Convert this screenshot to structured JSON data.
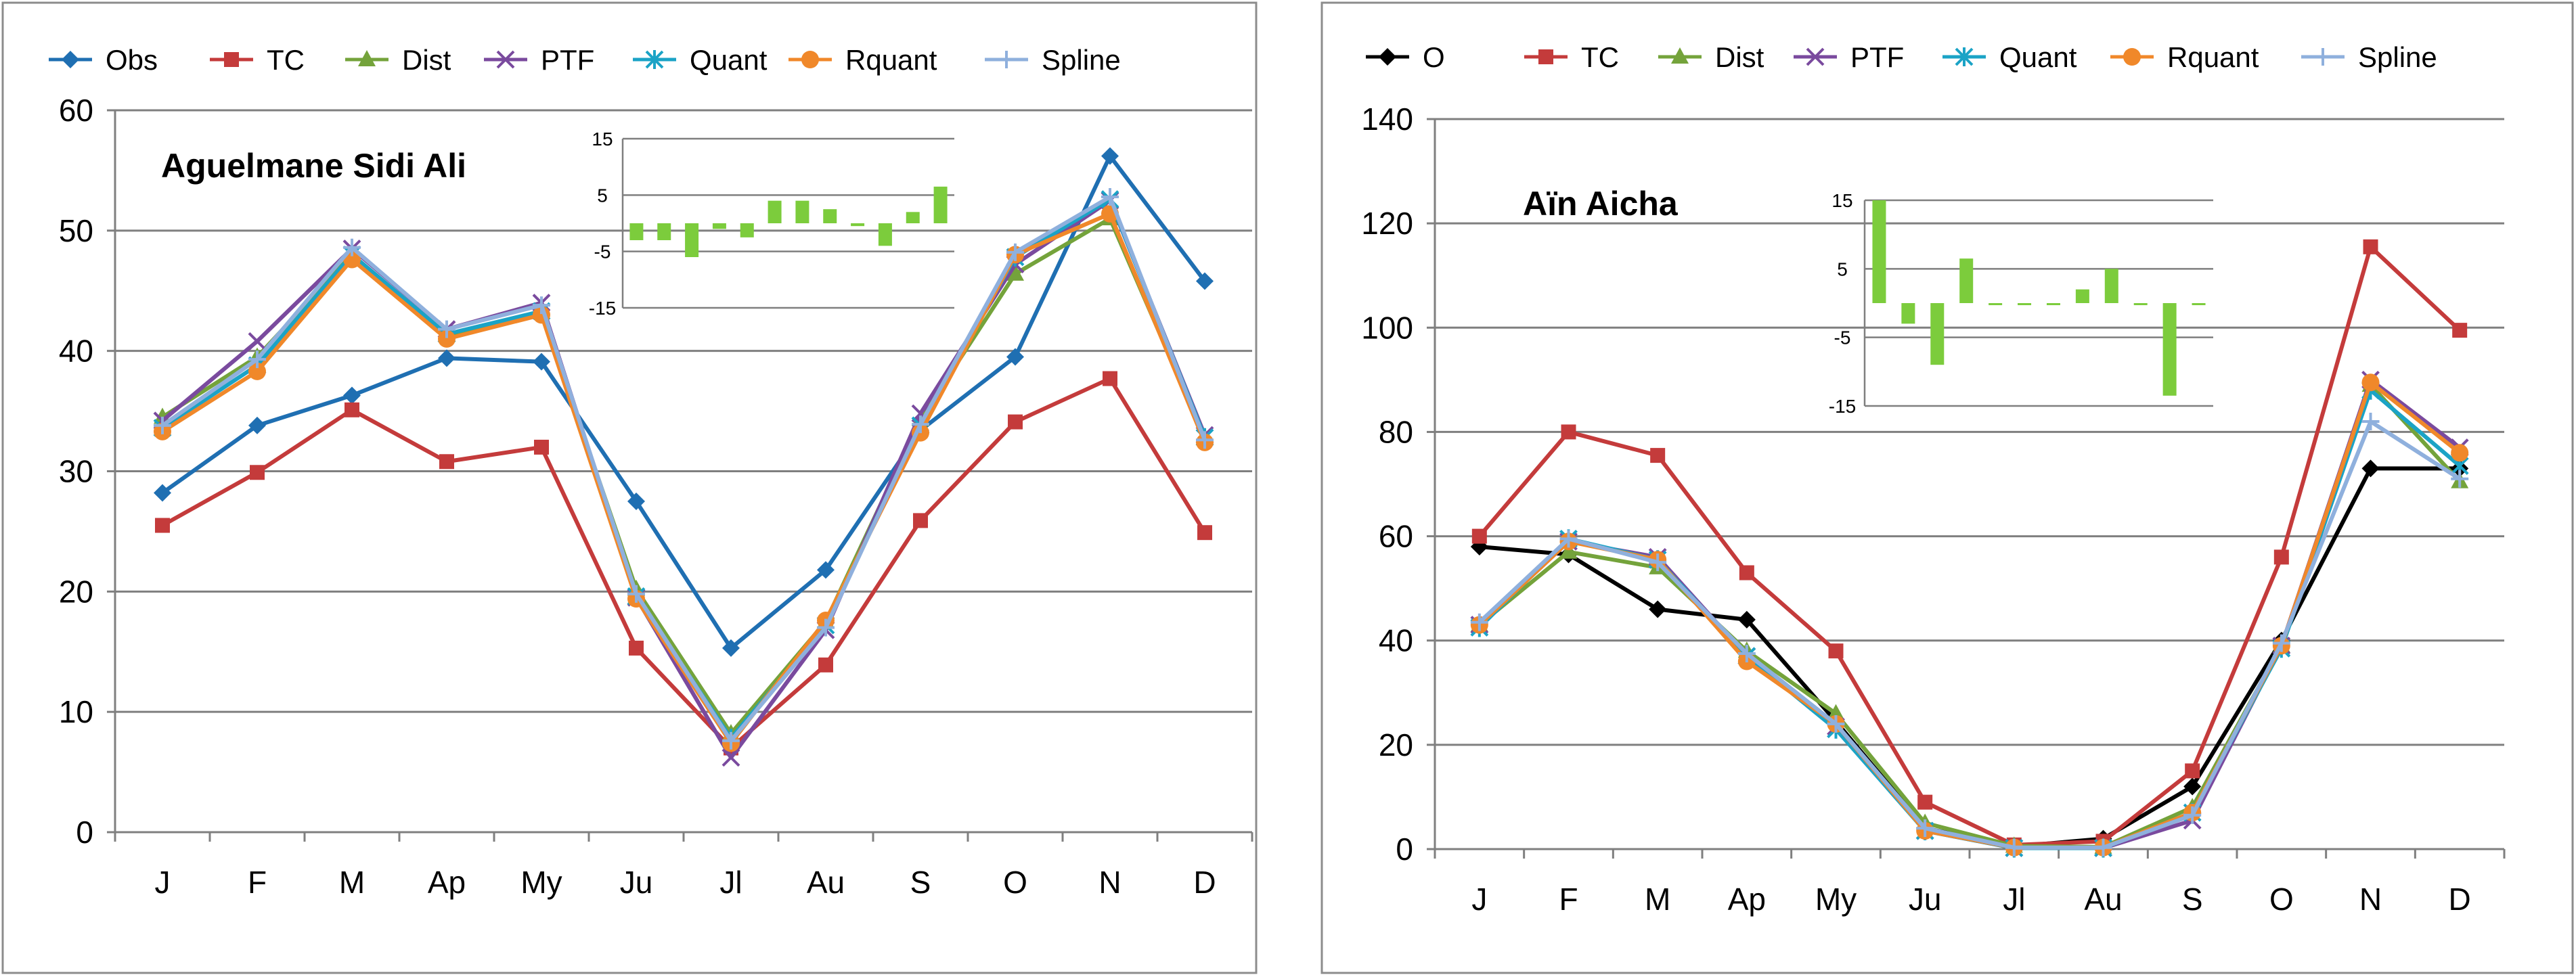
{
  "colors": {
    "obs": "#1f6fb2",
    "o": "#000000",
    "tc": "#c43b3b",
    "dist": "#74a33b",
    "ptf": "#7a4a9e",
    "quant": "#1ba3c6",
    "rquant": "#f0882a",
    "spline": "#8fb0dd",
    "bar": "#7ccc3c",
    "grid": "#7f7f7f"
  },
  "chart_data": [
    {
      "type": "line",
      "title": "Aguelmane Sidi Ali",
      "categories": [
        "J",
        "F",
        "M",
        "Ap",
        "My",
        "Ju",
        "Jl",
        "Au",
        "S",
        "O",
        "N",
        "D"
      ],
      "ylim": [
        0,
        60
      ],
      "yticks": [
        0,
        10,
        20,
        30,
        40,
        50,
        60
      ],
      "grid": true,
      "legend_position": "top",
      "series": [
        {
          "name": "Obs",
          "key": "obs",
          "marker": "diamond",
          "values": [
            28.2,
            33.8,
            36.3,
            39.4,
            39.1,
            27.5,
            15.3,
            21.8,
            33.4,
            39.5,
            56.2,
            45.8
          ]
        },
        {
          "name": "TC",
          "key": "tc",
          "marker": "square",
          "values": [
            25.5,
            29.9,
            35.1,
            30.8,
            32.0,
            15.3,
            7.0,
            13.9,
            25.9,
            34.1,
            37.7,
            24.9
          ]
        },
        {
          "name": "Dist",
          "key": "dist",
          "marker": "triangle",
          "values": [
            34.5,
            39.5,
            48.0,
            41.3,
            43.2,
            20.2,
            8.2,
            17.5,
            34.3,
            46.4,
            51.0,
            32.8
          ]
        },
        {
          "name": "PTF",
          "key": "ptf",
          "marker": "x",
          "values": [
            34.2,
            40.8,
            48.5,
            41.8,
            44.0,
            19.5,
            6.2,
            16.8,
            34.8,
            47.2,
            52.5,
            33.0
          ]
        },
        {
          "name": "Quant",
          "key": "quant",
          "marker": "star",
          "values": [
            33.6,
            38.8,
            48.0,
            41.4,
            43.3,
            19.6,
            7.8,
            17.2,
            33.8,
            47.8,
            52.6,
            32.8
          ]
        },
        {
          "name": "Rquant",
          "key": "rquant",
          "marker": "circle",
          "values": [
            33.3,
            38.3,
            47.6,
            41.0,
            43.0,
            19.4,
            7.4,
            17.6,
            33.2,
            48.0,
            51.4,
            32.4
          ]
        },
        {
          "name": "Spline",
          "key": "spline",
          "marker": "plus",
          "values": [
            33.8,
            39.3,
            48.6,
            41.8,
            43.8,
            19.8,
            7.6,
            17.0,
            33.9,
            48.2,
            52.8,
            32.6
          ]
        }
      ],
      "inset": {
        "type": "bar",
        "ylim": [
          -15,
          15
        ],
        "yticks": [
          "15",
          "5",
          "-5",
          "-15"
        ],
        "values": [
          -3.0,
          -3.0,
          -6.0,
          -1.0,
          -2.5,
          4.0,
          4.0,
          2.5,
          -0.5,
          -4.0,
          2.0,
          6.5
        ]
      }
    },
    {
      "type": "line",
      "title": "Aïn Aicha",
      "categories": [
        "J",
        "F",
        "M",
        "Ap",
        "My",
        "Ju",
        "Jl",
        "Au",
        "S",
        "O",
        "N",
        "D"
      ],
      "ylim": [
        0,
        140
      ],
      "yticks": [
        0,
        20,
        40,
        60,
        80,
        100,
        120,
        140
      ],
      "grid": true,
      "legend_position": "top",
      "series": [
        {
          "name": "O",
          "key": "o",
          "marker": "diamond",
          "values": [
            58.0,
            56.5,
            46.0,
            44.0,
            24.5,
            4.0,
            0.5,
            2.0,
            12.0,
            40.0,
            73.0,
            73.0
          ]
        },
        {
          "name": "TC",
          "key": "tc",
          "marker": "square",
          "values": [
            60.0,
            80.0,
            75.5,
            53.0,
            38.0,
            9.0,
            0.8,
            1.5,
            15.0,
            56.0,
            115.5,
            99.5
          ]
        },
        {
          "name": "Dist",
          "key": "dist",
          "marker": "triangle",
          "values": [
            43.0,
            57.0,
            54.0,
            38.0,
            26.0,
            5.0,
            0.6,
            0.4,
            8.0,
            39.0,
            89.0,
            70.5
          ]
        },
        {
          "name": "PTF",
          "key": "ptf",
          "marker": "x",
          "values": [
            43.0,
            59.0,
            56.0,
            37.0,
            23.5,
            3.5,
            0.2,
            0.2,
            5.5,
            39.0,
            90.0,
            77.0
          ]
        },
        {
          "name": "Quant",
          "key": "quant",
          "marker": "star",
          "values": [
            42.5,
            59.5,
            55.5,
            37.0,
            23.0,
            3.5,
            0.2,
            0.2,
            7.0,
            38.5,
            88.0,
            73.5
          ]
        },
        {
          "name": "Rquant",
          "key": "rquant",
          "marker": "circle",
          "values": [
            43.0,
            59.0,
            55.5,
            36.0,
            24.0,
            3.5,
            0.3,
            0.3,
            7.0,
            39.0,
            89.5,
            76.0
          ]
        },
        {
          "name": "Spline",
          "key": "spline",
          "marker": "plus",
          "values": [
            43.5,
            59.5,
            55.0,
            37.5,
            24.0,
            4.0,
            0.3,
            0.3,
            6.5,
            39.5,
            82.0,
            71.0
          ]
        }
      ],
      "inset": {
        "type": "bar",
        "ylim": [
          -15,
          15
        ],
        "yticks": [
          "15",
          "5",
          "-5",
          "-15"
        ],
        "values": [
          15.0,
          -3.0,
          -9.0,
          6.5,
          -0.3,
          -0.3,
          -0.3,
          2.0,
          5.0,
          -0.3,
          -13.5,
          -0.3
        ]
      }
    }
  ]
}
